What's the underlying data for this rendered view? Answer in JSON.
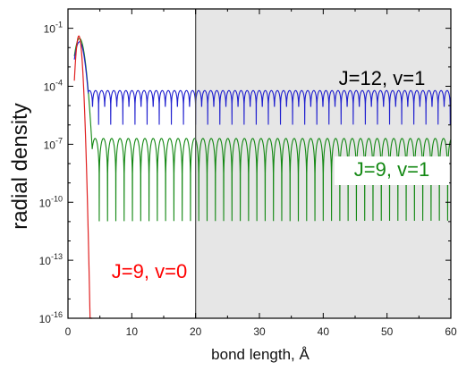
{
  "chart_data": {
    "type": "line",
    "title": "",
    "xlabel": "bond length, Å",
    "ylabel": "radial density",
    "xlim": [
      0,
      60
    ],
    "ylim": [
      1e-16,
      1
    ],
    "yscale": "log",
    "x_ticks": [
      0,
      10,
      20,
      30,
      40,
      50,
      60
    ],
    "x_tick_labels": [
      "0",
      "10",
      "20",
      "30",
      "40",
      "50",
      "60"
    ],
    "y_ticks": [
      1e-16,
      1e-13,
      1e-10,
      1e-07,
      0.0001,
      0.1
    ],
    "y_tick_labels": [
      {
        "base": "10",
        "exp": "-16"
      },
      {
        "base": "10",
        "exp": "-13"
      },
      {
        "base": "10",
        "exp": "-10"
      },
      {
        "base": "10",
        "exp": "-7"
      },
      {
        "base": "10",
        "exp": "-4"
      },
      {
        "base": "10",
        "exp": "-1"
      }
    ],
    "grid": false,
    "shaded_region": {
      "x_from": 20,
      "x_to": 60,
      "color": "#e6e6e6"
    },
    "vertical_line": {
      "x": 20,
      "color": "#555555"
    },
    "series": [
      {
        "name": "J=12, v=1",
        "color": "#1f1fcf",
        "peak": {
          "x": 1.8,
          "y": 0.02
        },
        "envelope_y": 6e-05,
        "node_depth_y": 1e-06,
        "oscillation_period": 0.95,
        "x_from": 1.0,
        "x_to": 60,
        "label_color": "#000000"
      },
      {
        "name": "J=9, v=1",
        "color": "#138813",
        "peak": {
          "x": 1.8,
          "y": 0.03
        },
        "envelope_y": 2e-07,
        "node_depth_y": 1e-11,
        "oscillation_period": 1.3,
        "x_from": 1.0,
        "x_to": 60,
        "label_color": "#138813"
      },
      {
        "name": "J=9, v=0",
        "color": "#e02020",
        "peak": {
          "x": 1.7,
          "y": 0.04
        },
        "decay_to_x": 3.8,
        "x_from": 1.0,
        "x_to": 3.8,
        "label_color": "#ff0000"
      }
    ],
    "annotations": [
      {
        "text": "J=12, v=1",
        "series": "J=12, v=1"
      },
      {
        "text": "J=9, v=1",
        "series": "J=9, v=1",
        "boxed": true
      },
      {
        "text": "J=9, v=0",
        "series": "J=9, v=0"
      }
    ]
  }
}
